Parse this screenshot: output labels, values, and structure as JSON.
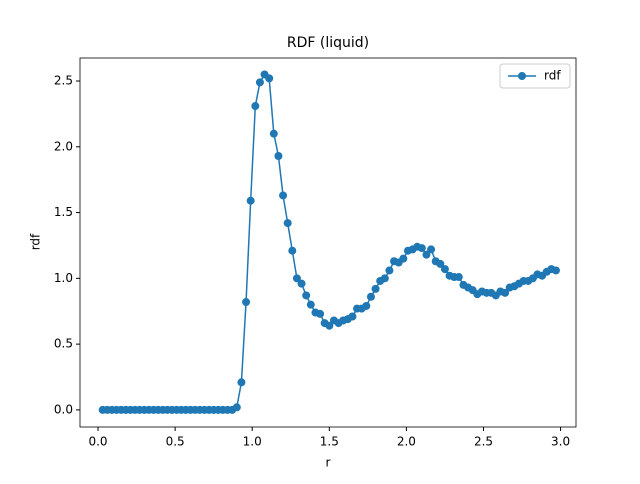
{
  "chart_data": {
    "type": "line",
    "title": "RDF (liquid)",
    "xlabel": "r",
    "ylabel": "rdf",
    "x": [
      0.03,
      0.06,
      0.09,
      0.12,
      0.15,
      0.18,
      0.21,
      0.24,
      0.27,
      0.3,
      0.33,
      0.36,
      0.39,
      0.42,
      0.45,
      0.48,
      0.51,
      0.54,
      0.57,
      0.6,
      0.63,
      0.66,
      0.69,
      0.72,
      0.75,
      0.78,
      0.81,
      0.84,
      0.87,
      0.9,
      0.93,
      0.96,
      0.99,
      1.02,
      1.05,
      1.08,
      1.11,
      1.14,
      1.17,
      1.2,
      1.23,
      1.26,
      1.29,
      1.32,
      1.35,
      1.38,
      1.41,
      1.44,
      1.47,
      1.5,
      1.53,
      1.56,
      1.59,
      1.62,
      1.65,
      1.68,
      1.71,
      1.74,
      1.77,
      1.8,
      1.83,
      1.86,
      1.89,
      1.92,
      1.95,
      1.98,
      2.01,
      2.04,
      2.07,
      2.1,
      2.13,
      2.16,
      2.19,
      2.22,
      2.25,
      2.28,
      2.31,
      2.34,
      2.37,
      2.4,
      2.43,
      2.46,
      2.49,
      2.52,
      2.55,
      2.58,
      2.61,
      2.64,
      2.67,
      2.7,
      2.73,
      2.76,
      2.79,
      2.82,
      2.85,
      2.88,
      2.91,
      2.94,
      2.97
    ],
    "series": [
      {
        "name": "rdf",
        "color": "#1f77b4",
        "values": [
          0,
          0,
          0,
          0,
          0,
          0,
          0,
          0,
          0,
          0,
          0,
          0,
          0,
          0,
          0,
          0,
          0,
          0,
          0,
          0,
          0,
          0,
          0,
          0,
          0,
          0,
          0,
          0,
          0,
          0.02,
          0.21,
          0.82,
          1.59,
          2.31,
          2.49,
          2.55,
          2.52,
          2.1,
          1.93,
          1.63,
          1.42,
          1.21,
          1.0,
          0.96,
          0.87,
          0.8,
          0.74,
          0.73,
          0.66,
          0.64,
          0.68,
          0.66,
          0.68,
          0.69,
          0.71,
          0.77,
          0.77,
          0.79,
          0.86,
          0.92,
          0.98,
          1.0,
          1.06,
          1.13,
          1.12,
          1.15,
          1.21,
          1.22,
          1.24,
          1.23,
          1.18,
          1.22,
          1.13,
          1.11,
          1.07,
          1.02,
          1.01,
          1.01,
          0.95,
          0.93,
          0.91,
          0.88,
          0.9,
          0.89,
          0.89,
          0.87,
          0.9,
          0.89,
          0.93,
          0.94,
          0.96,
          0.98,
          0.98,
          1.0,
          1.03,
          1.02,
          1.05,
          1.07,
          1.06
        ]
      }
    ],
    "xlim": [
      -0.117,
      3.1
    ],
    "ylim": [
      -0.13,
      2.675
    ],
    "xticks": [
      {
        "value": 0,
        "label": "0.0"
      },
      0.5,
      {
        "value": 1,
        "label": "1.0"
      },
      1.5,
      {
        "value": 2,
        "label": "2.0"
      },
      2.5,
      {
        "value": 3,
        "label": "3.0"
      }
    ],
    "yticks": [
      {
        "value": 0,
        "label": "0.0"
      },
      0.5,
      {
        "value": 1,
        "label": "1.0"
      },
      1.5,
      {
        "value": 2,
        "label": "2.0"
      },
      2.5
    ],
    "grid": false,
    "legend": "upper right"
  }
}
